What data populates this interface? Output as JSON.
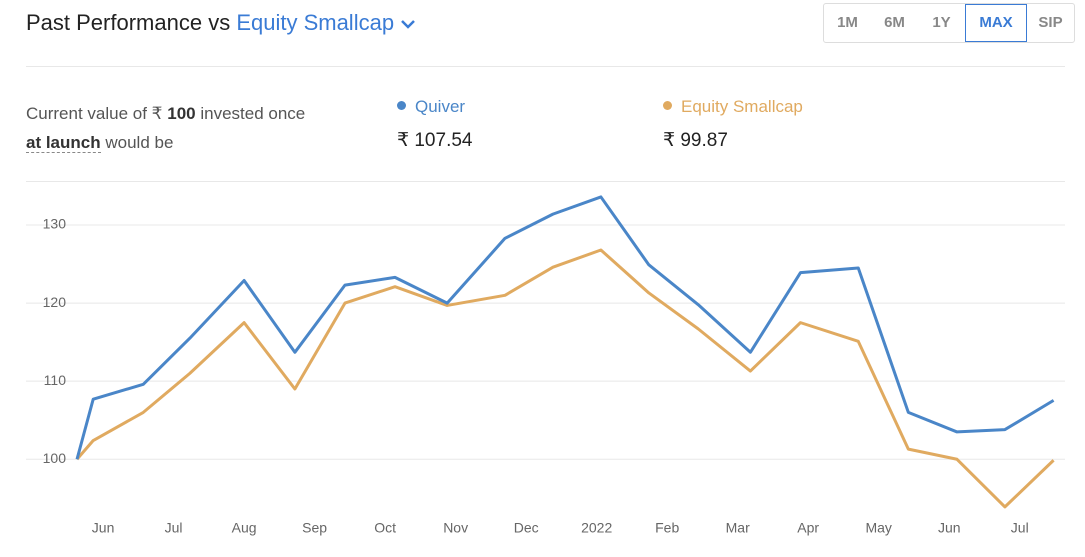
{
  "header": {
    "title": "Past Performance vs",
    "compare": "Equity Smallcap"
  },
  "periods": [
    "1M",
    "6M",
    "1Y",
    "MAX",
    "SIP"
  ],
  "selected_period": "MAX",
  "summary": {
    "line1_pre": "Current value of ₹",
    "amount": "100",
    "line1_post": "invested once",
    "link": "at launch",
    "line2_post": "would be",
    "items": [
      {
        "name": "Quiver",
        "value": "₹ 107.54"
      },
      {
        "name": "Equity Smallcap",
        "value": "₹ 99.87"
      }
    ]
  },
  "chart_data": {
    "type": "line",
    "x": [
      -0.37,
      -0.14,
      0.57,
      1.23,
      2.0,
      2.72,
      3.43,
      4.14,
      4.88,
      5.7,
      6.38,
      7.06,
      7.74,
      8.44,
      9.18,
      9.89,
      10.71,
      11.42,
      12.11,
      12.79,
      13.48
    ],
    "series": [
      {
        "name": "Quiver",
        "color": "#4a86c8",
        "values": [
          100,
          107.7,
          109.6,
          115.5,
          122.9,
          113.7,
          122.3,
          123.3,
          120,
          128.3,
          131.4,
          133.6,
          124.9,
          119.8,
          113.7,
          123.9,
          124.5,
          106,
          103.5,
          103.8,
          107.54
        ]
      },
      {
        "name": "Equity Smallcap",
        "color": "#e0aa60",
        "values": [
          100,
          102.4,
          106,
          111,
          117.5,
          109,
          120,
          122.1,
          119.7,
          121,
          124.6,
          126.8,
          121.3,
          116.7,
          111.3,
          117.5,
          115.1,
          101.3,
          100,
          93.9,
          99.87
        ]
      }
    ],
    "xlim": [
      -0.37,
      13.5
    ],
    "xticks": [
      {
        "value": 0,
        "label": "Jun"
      },
      {
        "value": 1,
        "label": "Jul"
      },
      {
        "value": 2,
        "label": "Aug"
      },
      {
        "value": 3,
        "label": "Sep"
      },
      {
        "value": 4,
        "label": "Oct"
      },
      {
        "value": 5,
        "label": "Nov"
      },
      {
        "value": 6,
        "label": "Dec"
      },
      {
        "value": 7,
        "label": "2022"
      },
      {
        "value": 8,
        "label": "Feb"
      },
      {
        "value": 9,
        "label": "Mar"
      },
      {
        "value": 10,
        "label": "Apr"
      },
      {
        "value": 11,
        "label": "May"
      },
      {
        "value": 12,
        "label": "Jun"
      },
      {
        "value": 13,
        "label": "Jul"
      }
    ],
    "ylim": [
      93.5,
      135
    ],
    "yticks": [
      100,
      110,
      120,
      130
    ],
    "grid": true
  }
}
